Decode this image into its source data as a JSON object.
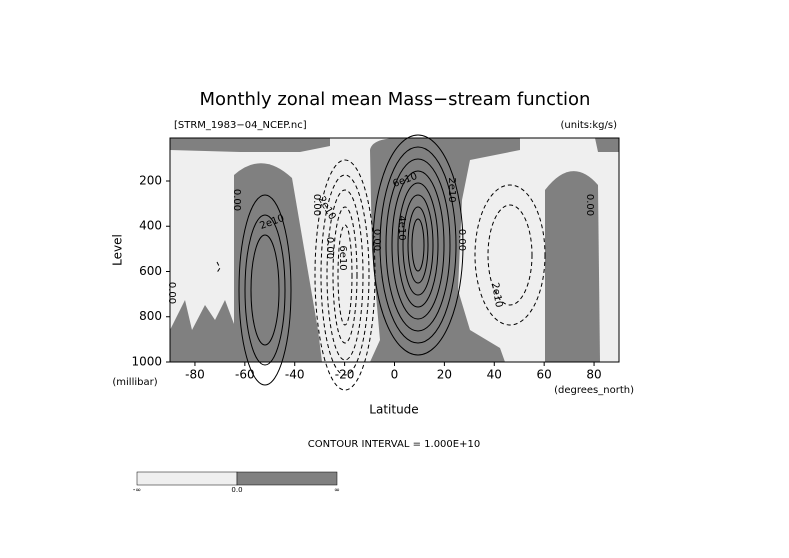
{
  "chart_data": {
    "type": "contour",
    "title": "Monthly zonal mean Mass−stream function",
    "subtitle_left": "[STRM_1983−04_NCEP.nc]",
    "subtitle_right": "(units:kg/s)",
    "y_label": "Level",
    "y_unit": "(millibar)",
    "x_label": "Latitude",
    "x_unit": "(degrees_north)",
    "xlim": [
      -90,
      90
    ],
    "xticks": [
      -80,
      -60,
      -40,
      -20,
      0,
      20,
      40,
      60,
      80
    ],
    "ylim": [
      1000,
      10
    ],
    "yticks": [
      200,
      400,
      600,
      800,
      1000
    ],
    "footer": "CONTOUR INTERVAL = 1.000E+10",
    "colorbar_labels": [
      "-∞",
      "0.0",
      "∞"
    ],
    "contour_labels": [
      "0.00",
      "2e10",
      "0.00",
      "0.00",
      "2e10",
      "6e10",
      "0.00",
      "4e10",
      "6e10",
      "2e10",
      "0.00",
      "2e10",
      "0.00",
      "0.00"
    ]
  }
}
